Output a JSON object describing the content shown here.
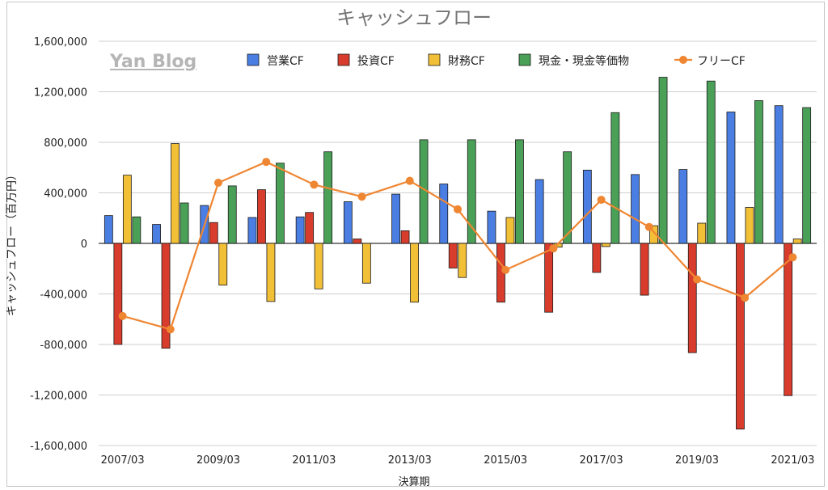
{
  "watermark": "Yan Blog",
  "chart_data": {
    "type": "bar",
    "title": "キャッシュフロー",
    "xlabel": "決算期",
    "ylabel": "キャッシュフロー（百万円）",
    "ylim": [
      -1600000,
      1600000
    ],
    "yticks": [
      1600000,
      1200000,
      800000,
      400000,
      0,
      -400000,
      -800000,
      -1200000,
      -1600000
    ],
    "ytick_labels": [
      "1,600,000",
      "1,200,000",
      "800,000",
      "400,000",
      "0",
      "-400,000",
      "-800,000",
      "-1,200,000",
      "-1,600,000"
    ],
    "grid": "horizontal",
    "legend_position": "top",
    "categories": [
      "2007/03",
      "2008/03",
      "2009/03",
      "2010/03",
      "2011/03",
      "2012/03",
      "2013/03",
      "2014/03",
      "2015/03",
      "2016/03",
      "2017/03",
      "2018/03",
      "2019/03",
      "2020/03",
      "2021/03"
    ],
    "xtick_labels": [
      "2007/03",
      "",
      "2009/03",
      "",
      "2011/03",
      "",
      "2013/03",
      "",
      "2015/03",
      "",
      "2017/03",
      "",
      "2019/03",
      "",
      "2021/03"
    ],
    "series": [
      {
        "name": "営業CF",
        "kind": "bar",
        "color": "#4a7ee3",
        "values": [
          220000,
          150000,
          300000,
          205000,
          210000,
          330000,
          390000,
          470000,
          255000,
          505000,
          580000,
          545000,
          585000,
          1040000,
          1090000
        ]
      },
      {
        "name": "投資CF",
        "kind": "bar",
        "color": "#d83c2c",
        "values": [
          -800000,
          -830000,
          165000,
          425000,
          245000,
          35000,
          100000,
          -195000,
          -465000,
          -545000,
          -230000,
          -410000,
          -865000,
          -1470000,
          -1205000
        ]
      },
      {
        "name": "財務CF",
        "kind": "bar",
        "color": "#f2c037",
        "values": [
          540000,
          790000,
          -330000,
          -460000,
          -360000,
          -315000,
          -465000,
          -270000,
          205000,
          -30000,
          -25000,
          140000,
          160000,
          285000,
          35000
        ]
      },
      {
        "name": "現金・現金等価物",
        "kind": "bar",
        "color": "#4aa057",
        "values": [
          210000,
          320000,
          455000,
          635000,
          725000,
          0,
          820000,
          820000,
          820000,
          725000,
          1035000,
          1315000,
          1285000,
          1130000,
          1075000
        ]
      },
      {
        "name": "フリーCF",
        "kind": "line",
        "color": "#ef8632",
        "values": [
          -575000,
          -680000,
          480000,
          645000,
          465000,
          370000,
          495000,
          270000,
          -210000,
          -40000,
          345000,
          130000,
          -285000,
          -430000,
          -110000
        ]
      }
    ]
  }
}
